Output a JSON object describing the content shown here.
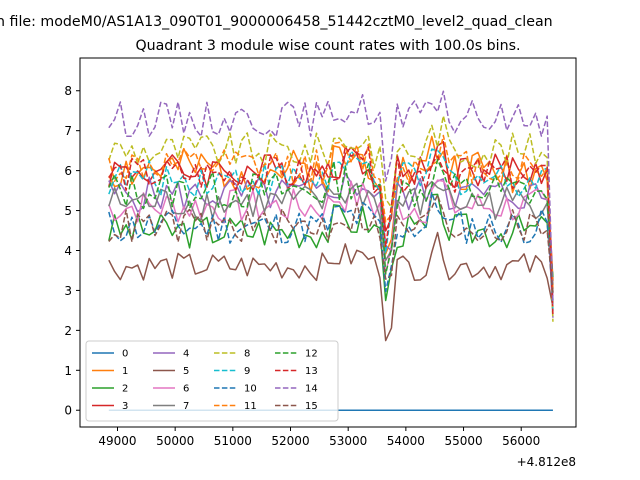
{
  "suptitle": "n file: modeM0/AS1A13_090T01_9000006458_51442cztM0_level2_quad_clean",
  "chart_data": {
    "type": "line",
    "title": "Quadrant 3 module wise count rates with 100.0s bins.",
    "xlabel": "",
    "ylabel": "",
    "x_offset_label": "+4.812e8",
    "x_start": 48850,
    "x_step": 100,
    "x_count": 78,
    "xlim": [
      48350,
      56950
    ],
    "ylim": [
      -0.42,
      8.82
    ],
    "x_ticks": [
      49000,
      50000,
      51000,
      52000,
      53000,
      54000,
      55000,
      56000
    ],
    "x_tick_labels": [
      "49000",
      "50000",
      "51000",
      "52000",
      "53000",
      "54000",
      "55000",
      "56000"
    ],
    "y_ticks": [
      0,
      1,
      2,
      3,
      4,
      5,
      6,
      7,
      8
    ],
    "y_tick_labels": [
      "0",
      "1",
      "2",
      "3",
      "4",
      "5",
      "6",
      "7",
      "8"
    ],
    "grid": false,
    "legend_position": "lower-left",
    "legend_columns": 4,
    "series": [
      {
        "name": "0",
        "color": "#1f77b4",
        "dash": "solid",
        "base": 0.0,
        "amp": 0.0,
        "seed": 1
      },
      {
        "name": "1",
        "color": "#ff7f0e",
        "dash": "solid",
        "base": 6.0,
        "amp": 0.55,
        "seed": 2
      },
      {
        "name": "2",
        "color": "#2ca02c",
        "dash": "solid",
        "base": 4.5,
        "amp": 0.45,
        "seed": 3
      },
      {
        "name": "3",
        "color": "#d62728",
        "dash": "solid",
        "base": 6.0,
        "amp": 0.45,
        "seed": 4
      },
      {
        "name": "4",
        "color": "#9467bd",
        "dash": "solid",
        "base": 5.4,
        "amp": 0.45,
        "seed": 5
      },
      {
        "name": "5",
        "color": "#8c564b",
        "dash": "solid",
        "base": 3.6,
        "amp": 0.35,
        "seed": 6
      },
      {
        "name": "6",
        "color": "#e377c2",
        "dash": "solid",
        "base": 5.1,
        "amp": 0.45,
        "seed": 7
      },
      {
        "name": "7",
        "color": "#7f7f7f",
        "dash": "solid",
        "base": 5.2,
        "amp": 0.45,
        "seed": 8
      },
      {
        "name": "8",
        "color": "#bcbd22",
        "dash": "dash",
        "base": 6.5,
        "amp": 0.45,
        "seed": 9
      },
      {
        "name": "9",
        "color": "#17becf",
        "dash": "dash",
        "base": 5.8,
        "amp": 0.45,
        "seed": 10
      },
      {
        "name": "10",
        "color": "#1f77b4",
        "dash": "dash",
        "base": 4.6,
        "amp": 0.45,
        "seed": 11
      },
      {
        "name": "11",
        "color": "#ff7f0e",
        "dash": "dash",
        "base": 6.1,
        "amp": 0.45,
        "seed": 12
      },
      {
        "name": "12",
        "color": "#2ca02c",
        "dash": "dash",
        "base": 5.5,
        "amp": 0.5,
        "seed": 13
      },
      {
        "name": "13",
        "color": "#d62728",
        "dash": "dash",
        "base": 5.9,
        "amp": 0.45,
        "seed": 14
      },
      {
        "name": "14",
        "color": "#9467bd",
        "dash": "dash",
        "base": 7.3,
        "amp": 0.45,
        "seed": 15
      },
      {
        "name": "15",
        "color": "#8c564b",
        "dash": "dash",
        "base": 4.6,
        "amp": 0.45,
        "seed": 16
      }
    ]
  }
}
